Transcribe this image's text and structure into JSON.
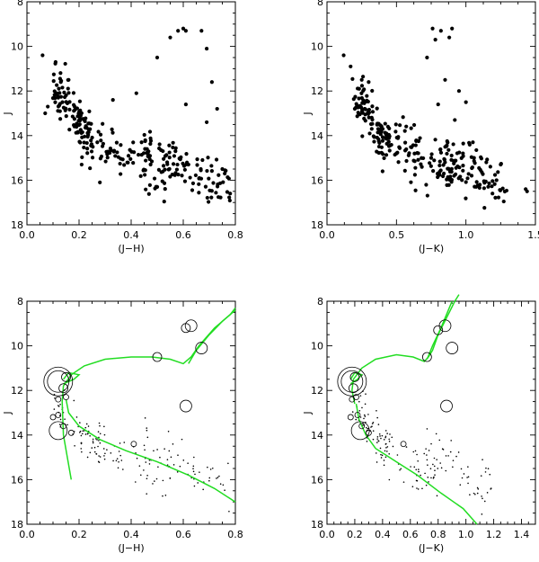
{
  "chart_data": [
    {
      "type": "scatter",
      "xlabel": "(J−H)",
      "ylabel": "J",
      "xlim": [
        0.0,
        0.8
      ],
      "ylim": [
        18,
        8
      ],
      "xticks": [
        "0.0",
        "0.2",
        "0.4",
        "0.6",
        "0.8"
      ],
      "yticks": [
        "8",
        "10",
        "12",
        "14",
        "16",
        "18"
      ],
      "marker": "filled-dot",
      "point_count_approx": 330,
      "points_visible": [
        [
          0.06,
          10.4
        ],
        [
          0.11,
          10.7
        ],
        [
          0.13,
          11.6
        ],
        [
          0.16,
          11.5
        ],
        [
          0.12,
          12.3
        ],
        [
          0.33,
          12.4
        ],
        [
          0.42,
          12.1
        ],
        [
          0.5,
          10.5
        ],
        [
          0.58,
          9.3
        ],
        [
          0.6,
          9.2
        ],
        [
          0.61,
          9.3
        ],
        [
          0.55,
          9.6
        ],
        [
          0.67,
          9.3
        ],
        [
          0.69,
          10.1
        ],
        [
          0.71,
          11.6
        ],
        [
          0.73,
          12.8
        ],
        [
          0.61,
          12.6
        ],
        [
          0.69,
          13.4
        ],
        [
          0.08,
          12.7
        ],
        [
          0.07,
          13.0
        ],
        [
          0.27,
          14.3
        ],
        [
          0.44,
          14.3
        ],
        [
          0.57,
          14.7
        ],
        [
          0.62,
          15.3
        ],
        [
          0.78,
          16.6
        ],
        [
          0.75,
          15.5
        ],
        [
          0.5,
          16.3
        ],
        [
          0.28,
          16.1
        ],
        [
          0.21,
          15.3
        ]
      ],
      "density_regions": [
        {
          "x_range": [
            0.1,
            0.25
          ],
          "y_range": [
            11.8,
            14.2
          ]
        },
        {
          "x_range": [
            0.2,
            0.55
          ],
          "y_range": [
            13.8,
            16.0
          ]
        },
        {
          "x_range": [
            0.45,
            0.78
          ],
          "y_range": [
            14.5,
            16.5
          ]
        }
      ]
    },
    {
      "type": "scatter",
      "xlabel": "(J−K)",
      "ylabel": "J",
      "xlim": [
        0.0,
        1.5
      ],
      "ylim": [
        18,
        8
      ],
      "xticks": [
        "0.0",
        "0.5",
        "1.0",
        "1.5"
      ],
      "yticks": [
        "8",
        "10",
        "12",
        "14",
        "16",
        "18"
      ],
      "marker": "filled-dot",
      "point_count_approx": 330,
      "points_visible": [
        [
          0.12,
          10.4
        ],
        [
          0.17,
          10.9
        ],
        [
          0.25,
          11.5
        ],
        [
          0.3,
          11.6
        ],
        [
          0.76,
          9.2
        ],
        [
          0.82,
          9.3
        ],
        [
          0.9,
          9.2
        ],
        [
          0.78,
          9.7
        ],
        [
          0.88,
          9.6
        ],
        [
          0.72,
          10.5
        ],
        [
          0.85,
          11.5
        ],
        [
          0.95,
          12.0
        ],
        [
          1.0,
          12.5
        ],
        [
          0.8,
          12.6
        ],
        [
          0.92,
          13.3
        ],
        [
          1.05,
          14.3
        ],
        [
          1.25,
          15.3
        ],
        [
          1.43,
          16.4
        ],
        [
          1.44,
          16.5
        ],
        [
          0.2,
          12.8
        ],
        [
          0.5,
          14.8
        ],
        [
          0.75,
          15.0
        ],
        [
          1.1,
          16.2
        ],
        [
          0.4,
          15.6
        ]
      ],
      "density_regions": [
        {
          "x_range": [
            0.18,
            0.45
          ],
          "y_range": [
            11.8,
            14.5
          ]
        },
        {
          "x_range": [
            0.35,
            0.9
          ],
          "y_range": [
            13.8,
            16.0
          ]
        },
        {
          "x_range": [
            0.8,
            1.3
          ],
          "y_range": [
            14.8,
            16.3
          ]
        }
      ]
    },
    {
      "type": "scatter",
      "xlabel": "(J−H)",
      "ylabel": "J",
      "xlim": [
        0.0,
        0.8
      ],
      "ylim": [
        18,
        8
      ],
      "xticks": [
        "0.0",
        "0.2",
        "0.4",
        "0.6",
        "0.8"
      ],
      "yticks": [
        "8",
        "10",
        "12",
        "14",
        "16",
        "18"
      ],
      "marker": "small-dot",
      "isochrone_color": "#22dd22",
      "isochrone": [
        [
          0.17,
          16.0
        ],
        [
          0.14,
          14.0
        ],
        [
          0.135,
          12.5
        ],
        [
          0.14,
          11.8
        ],
        [
          0.17,
          11.3
        ],
        [
          0.22,
          10.9
        ],
        [
          0.3,
          10.6
        ],
        [
          0.4,
          10.5
        ],
        [
          0.48,
          10.5
        ],
        [
          0.55,
          10.6
        ],
        [
          0.6,
          10.8
        ],
        [
          0.63,
          10.5
        ],
        [
          0.66,
          10.0
        ],
        [
          0.72,
          9.2
        ],
        [
          0.78,
          8.6
        ],
        [
          0.8,
          8.3
        ]
      ],
      "isochrone_ms": [
        [
          0.15,
          12.4
        ],
        [
          0.16,
          13.0
        ],
        [
          0.2,
          13.6
        ],
        [
          0.28,
          14.2
        ],
        [
          0.38,
          14.7
        ],
        [
          0.5,
          15.2
        ],
        [
          0.62,
          15.8
        ],
        [
          0.72,
          16.4
        ],
        [
          0.8,
          17.0
        ]
      ],
      "isochrone_branch": [
        [
          0.62,
          10.8
        ],
        [
          0.65,
          10.2
        ],
        [
          0.7,
          9.5
        ],
        [
          0.75,
          8.9
        ],
        [
          0.8,
          8.4
        ]
      ],
      "hook": [
        [
          0.14,
          11.7
        ],
        [
          0.18,
          11.5
        ],
        [
          0.2,
          11.3
        ],
        [
          0.16,
          11.2
        ],
        [
          0.14,
          11.5
        ]
      ],
      "circles": [
        {
          "x": 0.12,
          "y": 11.6,
          "size": 3.2
        },
        {
          "x": 0.12,
          "y": 11.6,
          "size": 2.4
        },
        {
          "x": 0.15,
          "y": 11.4,
          "size": 1.0
        },
        {
          "x": 0.14,
          "y": 11.9,
          "size": 1.0
        },
        {
          "x": 0.12,
          "y": 12.4,
          "size": 0.6
        },
        {
          "x": 0.15,
          "y": 12.3,
          "size": 0.6
        },
        {
          "x": 0.1,
          "y": 13.2,
          "size": 0.6
        },
        {
          "x": 0.12,
          "y": 13.1,
          "size": 0.6
        },
        {
          "x": 0.14,
          "y": 13.6,
          "size": 0.6
        },
        {
          "x": 0.17,
          "y": 13.9,
          "size": 0.6
        },
        {
          "x": 0.12,
          "y": 13.8,
          "size": 2.0
        },
        {
          "x": 0.41,
          "y": 14.4,
          "size": 0.6
        },
        {
          "x": 0.5,
          "y": 10.5,
          "size": 1.0
        },
        {
          "x": 0.61,
          "y": 9.2,
          "size": 1.0
        },
        {
          "x": 0.63,
          "y": 9.1,
          "size": 1.3
        },
        {
          "x": 0.67,
          "y": 10.1,
          "size": 1.3
        },
        {
          "x": 0.61,
          "y": 12.7,
          "size": 1.3
        }
      ],
      "density_regions": [
        {
          "x_range": [
            0.1,
            0.3
          ],
          "y_range": [
            12.5,
            14.8
          ]
        },
        {
          "x_range": [
            0.2,
            0.55
          ],
          "y_range": [
            14.0,
            16.2
          ]
        },
        {
          "x_range": [
            0.45,
            0.78
          ],
          "y_range": [
            14.5,
            16.5
          ]
        }
      ]
    },
    {
      "type": "scatter",
      "xlabel": "(J−K)",
      "ylabel": "J",
      "xlim": [
        0.0,
        1.5
      ],
      "ylim": [
        18,
        8
      ],
      "xticks": [
        "0.0",
        "0.2",
        "0.4",
        "0.6",
        "0.8",
        "1.0",
        "1.2",
        "1.4"
      ],
      "yticks": [
        "8",
        "10",
        "12",
        "14",
        "16",
        "18"
      ],
      "marker": "small-dot",
      "isochrone_color": "#22dd22",
      "isochrone": [
        [
          0.2,
          12.6
        ],
        [
          0.18,
          12.0
        ],
        [
          0.19,
          11.5
        ],
        [
          0.25,
          11.0
        ],
        [
          0.35,
          10.6
        ],
        [
          0.5,
          10.4
        ],
        [
          0.62,
          10.5
        ],
        [
          0.7,
          10.7
        ],
        [
          0.73,
          10.5
        ],
        [
          0.76,
          10.2
        ],
        [
          0.8,
          9.5
        ],
        [
          0.84,
          9.0
        ],
        [
          0.88,
          8.5
        ],
        [
          0.92,
          8.0
        ],
        [
          0.95,
          7.7
        ]
      ],
      "isochrone_ms": [
        [
          0.21,
          12.6
        ],
        [
          0.23,
          13.3
        ],
        [
          0.28,
          14.0
        ],
        [
          0.35,
          14.6
        ],
        [
          0.5,
          15.2
        ],
        [
          0.65,
          15.8
        ],
        [
          0.82,
          16.6
        ],
        [
          0.98,
          17.3
        ],
        [
          1.08,
          18.0
        ]
      ],
      "isochrone_branch": [
        [
          0.72,
          10.6
        ],
        [
          0.76,
          10.0
        ],
        [
          0.82,
          9.2
        ],
        [
          0.86,
          8.6
        ],
        [
          0.9,
          8.0
        ]
      ],
      "hook": [
        [
          0.17,
          11.7
        ],
        [
          0.22,
          11.5
        ],
        [
          0.25,
          11.3
        ],
        [
          0.2,
          11.2
        ],
        [
          0.17,
          11.5
        ]
      ],
      "circles": [
        {
          "x": 0.18,
          "y": 11.6,
          "size": 3.2
        },
        {
          "x": 0.18,
          "y": 11.6,
          "size": 2.4
        },
        {
          "x": 0.2,
          "y": 11.4,
          "size": 1.0
        },
        {
          "x": 0.19,
          "y": 11.9,
          "size": 1.0
        },
        {
          "x": 0.18,
          "y": 12.4,
          "size": 0.6
        },
        {
          "x": 0.21,
          "y": 12.3,
          "size": 0.6
        },
        {
          "x": 0.17,
          "y": 13.2,
          "size": 0.6
        },
        {
          "x": 0.22,
          "y": 13.1,
          "size": 0.6
        },
        {
          "x": 0.25,
          "y": 13.6,
          "size": 0.6
        },
        {
          "x": 0.3,
          "y": 13.9,
          "size": 0.6
        },
        {
          "x": 0.24,
          "y": 13.8,
          "size": 2.0
        },
        {
          "x": 0.55,
          "y": 14.4,
          "size": 0.6
        },
        {
          "x": 0.72,
          "y": 10.5,
          "size": 1.0
        },
        {
          "x": 0.8,
          "y": 9.3,
          "size": 1.0
        },
        {
          "x": 0.85,
          "y": 9.1,
          "size": 1.3
        },
        {
          "x": 0.9,
          "y": 10.1,
          "size": 1.3
        },
        {
          "x": 0.86,
          "y": 12.7,
          "size": 1.3
        }
      ],
      "density_regions": [
        {
          "x_range": [
            0.18,
            0.45
          ],
          "y_range": [
            12.5,
            14.8
          ]
        },
        {
          "x_range": [
            0.35,
            0.8
          ],
          "y_range": [
            14.0,
            16.2
          ]
        },
        {
          "x_range": [
            0.7,
            1.2
          ],
          "y_range": [
            14.5,
            16.5
          ]
        }
      ]
    }
  ]
}
